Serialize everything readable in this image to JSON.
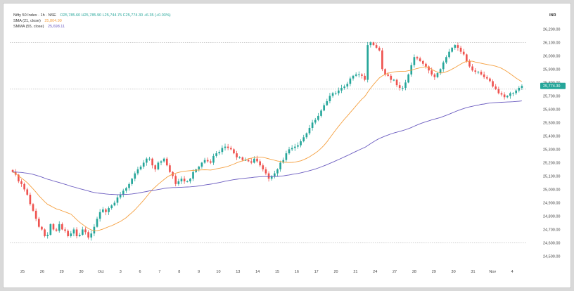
{
  "legend": {
    "symbol": "Nifty 50 Index · 1h · NSE",
    "ohlc": "O25,785.60 H25,785.90 L25,744.75 C25,774.30 +6.35 (+0.03%)",
    "sma21_label": "SMA (21, close)",
    "sma21_value": "25,804.99",
    "sma55_label": "SMMA (55, close)",
    "sma55_value": "25,698.11"
  },
  "currency": "INR",
  "colors": {
    "up": "#26a69a",
    "down": "#ef5350",
    "sma21": "#f5a040",
    "sma55": "#6b5cc0",
    "last_price_bg": "#26a69a"
  },
  "chart_data": {
    "type": "candlestick",
    "x_tick_labels": [
      "25",
      "26",
      "29",
      "30",
      "Oct",
      "3",
      "6",
      "7",
      "8",
      "9",
      "10",
      "13",
      "14",
      "15",
      "16",
      "17",
      "20",
      "21",
      "24",
      "27",
      "28",
      "29",
      "30",
      "31",
      "Nov",
      "4"
    ],
    "y_tick_labels": [
      "26,200.00",
      "26,100.00",
      "26,000.00",
      "25,900.00",
      "25,800.00",
      "25,700.00",
      "25,600.00",
      "25,500.00",
      "25,400.00",
      "25,300.00",
      "25,200.00",
      "25,100.00",
      "25,000.00",
      "24,900.00",
      "24,800.00",
      "24,700.00",
      "24,600.00",
      "24,500.00"
    ],
    "ylim": [
      24450,
      26270
    ],
    "last_price": "25,774.30",
    "closes": [
      25130,
      25110,
      25060,
      25040,
      25000,
      24960,
      24890,
      24840,
      24780,
      24720,
      24700,
      24650,
      24660,
      24740,
      24700,
      24690,
      24740,
      24700,
      24690,
      24650,
      24670,
      24700,
      24650,
      24660,
      24700,
      24680,
      24640,
      24670,
      24720,
      24780,
      24830,
      24850,
      24830,
      24860,
      24880,
      24900,
      24940,
      24960,
      24990,
      25010,
      25040,
      25080,
      25120,
      25150,
      25170,
      25200,
      25230,
      25230,
      25180,
      25150,
      25200,
      25210,
      25230,
      25180,
      25130,
      25100,
      25040,
      25060,
      25080,
      25060,
      25060,
      25080,
      25130,
      25150,
      25170,
      25200,
      25220,
      25210,
      25200,
      25250,
      25270,
      25280,
      25310,
      25320,
      25310,
      25300,
      25270,
      25240,
      25240,
      25220,
      25220,
      25210,
      25200,
      25230,
      25210,
      25180,
      25150,
      25120,
      25080,
      25100,
      25120,
      25150,
      25200,
      25220,
      25270,
      25300,
      25310,
      25320,
      25330,
      25360,
      25390,
      25420,
      25460,
      25500,
      25520,
      25550,
      25590,
      25630,
      25660,
      25700,
      25720,
      25720,
      25740,
      25760,
      25770,
      25790,
      25830,
      25850,
      25860,
      25860,
      25850,
      25820,
      26080,
      26100,
      26080,
      26060,
      26040,
      25900,
      25860,
      25850,
      25820,
      25820,
      25780,
      25760,
      25760,
      25800,
      25860,
      25930,
      25990,
      25980,
      25960,
      25940,
      25920,
      25890,
      25860,
      25840,
      25870,
      25900,
      25950,
      25990,
      26030,
      26060,
      26080,
      26060,
      26030,
      26010,
      25960,
      25920,
      25890,
      25880,
      25880,
      25860,
      25840,
      25830,
      25810,
      25770,
      25750,
      25720,
      25710,
      25690,
      25700,
      25720,
      25720,
      25740,
      25760,
      25774.3
    ],
    "series": [
      {
        "name": "SMA (21, close)",
        "values": []
      },
      {
        "name": "SMMA (55, close)",
        "values": []
      }
    ]
  }
}
